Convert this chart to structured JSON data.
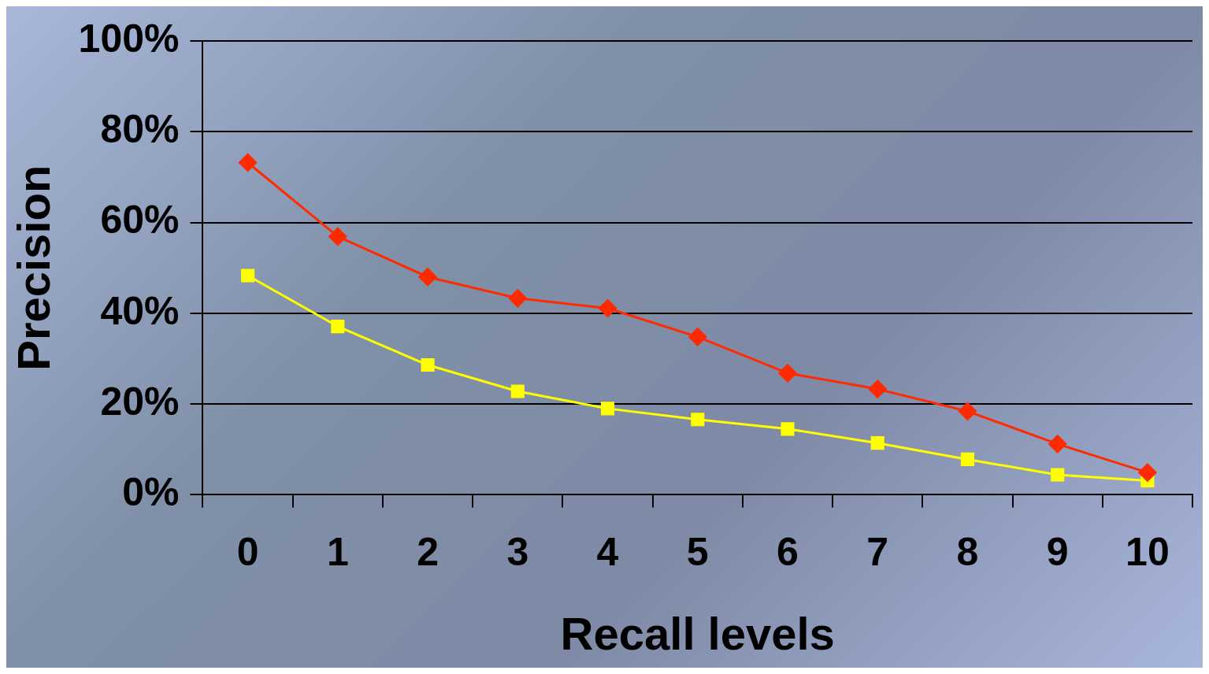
{
  "chart_data": {
    "type": "line",
    "xlabel": "Recall levels",
    "ylabel": "Precision",
    "categories": [
      "0",
      "1",
      "2",
      "3",
      "4",
      "5",
      "6",
      "7",
      "8",
      "9",
      "10"
    ],
    "series": [
      {
        "color": "#ff2a00",
        "marker": "diamond",
        "values": [
          73.2,
          56.9,
          48.0,
          43.3,
          41.1,
          34.8,
          26.8,
          23.3,
          18.4,
          11.2,
          4.9
        ]
      },
      {
        "color": "#ffff00",
        "marker": "square",
        "values": [
          48.3,
          37.1,
          28.6,
          22.8,
          19.0,
          16.6,
          14.5,
          11.4,
          7.8,
          4.4,
          3.1
        ]
      }
    ],
    "ylim": [
      0,
      100
    ],
    "yticks": [
      {
        "value": 0,
        "label": "0%"
      },
      {
        "value": 20,
        "label": "20%"
      },
      {
        "value": 40,
        "label": "40%"
      },
      {
        "value": 60,
        "label": "60%"
      },
      {
        "value": 80,
        "label": "80%"
      },
      {
        "value": 100,
        "label": "100%"
      }
    ],
    "grid": "y",
    "legend": false,
    "line_style": "solid"
  }
}
